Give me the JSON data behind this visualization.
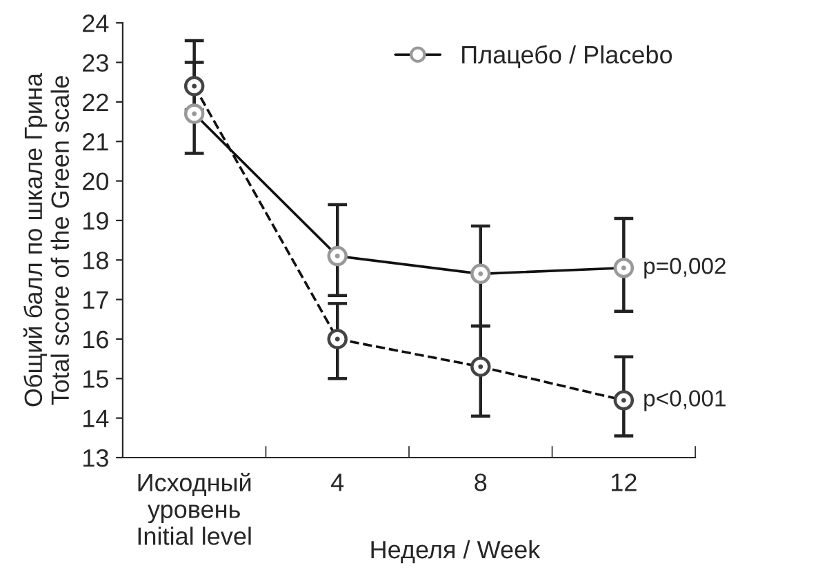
{
  "chart_data": {
    "type": "line",
    "categories": [
      "Исходный\nуровень\nInitial level",
      "4",
      "8",
      "12"
    ],
    "xlabel": "Неделя / Week",
    "ylabel": "Общий балл по шкале Грина\nTotal score of the Green scale",
    "ylim": [
      13,
      24
    ],
    "yticks": [
      13,
      14,
      15,
      16,
      17,
      18,
      19,
      20,
      21,
      22,
      23,
      24
    ],
    "grid": false,
    "legend": "top right",
    "marker": "circle",
    "series": [
      {
        "color": "#444444",
        "line_style": "dashed",
        "values": [
          22.4,
          16.0,
          15.3,
          14.45
        ],
        "errors": [
          [
            21.8,
            23.0
          ],
          [
            15.0,
            16.9
          ],
          [
            14.05,
            16.33
          ],
          [
            13.55,
            15.55
          ]
        ]
      },
      {
        "name": "Плацебо / Placebo",
        "color": "#999999",
        "line_style": "solid",
        "values": [
          21.7,
          18.1,
          17.65,
          17.8
        ],
        "errors": [
          [
            20.7,
            23.55
          ],
          [
            17.1,
            19.4
          ],
          [
            16.33,
            18.86
          ],
          [
            16.7,
            19.05
          ]
        ]
      }
    ],
    "annotations": [
      {
        "text": "p=0,002",
        "x": "12",
        "y": 17.8
      },
      {
        "text": "p<0,001",
        "x": "12",
        "y": 14.45
      }
    ]
  }
}
